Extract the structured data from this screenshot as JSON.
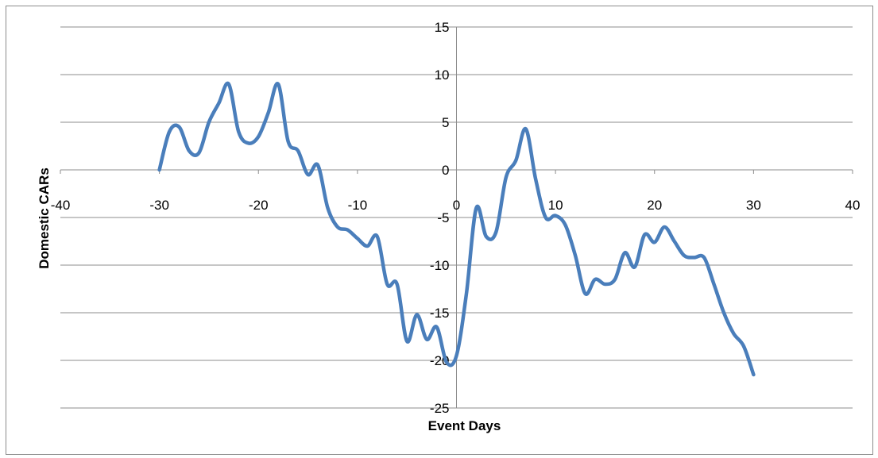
{
  "chart_data": {
    "type": "line",
    "title": "",
    "xlabel": "Event Days",
    "ylabel": "Domestic CARs",
    "xlim": [
      -40,
      40
    ],
    "ylim": [
      -25,
      15
    ],
    "x_ticks": [
      -40,
      -30,
      -20,
      -10,
      0,
      10,
      20,
      30,
      40
    ],
    "y_ticks": [
      15,
      10,
      5,
      0,
      -5,
      -10,
      -15,
      -20,
      -25
    ],
    "grid": "horizontal",
    "legend": "none",
    "line_color": "#4a7ebb",
    "series": [
      {
        "x": [
          -30,
          -29,
          -28,
          -27,
          -26,
          -25,
          -24,
          -23,
          -22,
          -21,
          -20,
          -19,
          -18,
          -17,
          -16,
          -15,
          -14,
          -13,
          -12,
          -11,
          -10,
          -9,
          -8,
          -7,
          -6,
          -5,
          -4,
          -3,
          -2,
          -1,
          0,
          1,
          2,
          3,
          4,
          5,
          6,
          7,
          8,
          9,
          10,
          11,
          12,
          13,
          14,
          15,
          16,
          17,
          18,
          19,
          20,
          21,
          22,
          23,
          24,
          25,
          26,
          27,
          28,
          29,
          30
        ],
        "values": [
          0,
          4,
          4.5,
          2,
          1.8,
          5,
          7,
          9,
          4,
          2.8,
          3.5,
          6,
          9,
          3,
          2,
          -0.5,
          0.5,
          -4,
          -6,
          -6.3,
          -7.2,
          -8,
          -7,
          -12,
          -12,
          -18,
          -15.2,
          -17.8,
          -16.5,
          -20.2,
          -19.5,
          -13,
          -4,
          -7,
          -6.5,
          -0.8,
          1,
          4.3,
          -1,
          -5,
          -4.8,
          -5.8,
          -9,
          -13,
          -11.5,
          -12,
          -11.5,
          -8.7,
          -10.2,
          -6.8,
          -7.6,
          -6,
          -7.5,
          -9,
          -9.2,
          -9.2,
          -12,
          -15,
          -17.2,
          -18.5,
          -21.5
        ]
      }
    ]
  }
}
